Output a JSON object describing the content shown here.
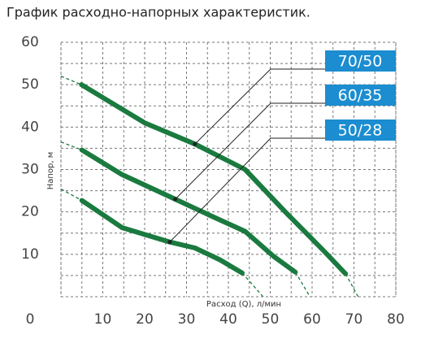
{
  "chart_data": {
    "type": "line",
    "title": "График расходно-напорных характеристик.",
    "x_label": "Расход (Q), л/мин",
    "y_label": "Напор, м",
    "xlim": [
      0,
      80
    ],
    "ylim": [
      0,
      60
    ],
    "xticks": [
      0,
      10,
      20,
      30,
      40,
      50,
      60,
      70,
      80
    ],
    "yticks": [
      0,
      10,
      20,
      30,
      40,
      50,
      60
    ],
    "grid": true,
    "dashed_ends": true,
    "series": [
      {
        "name": "70/50",
        "color": "#1a7a3f",
        "label_color": "#1b8dd0",
        "x": [
          0,
          4.9,
          20,
          32,
          44,
          53.6,
          63,
          68,
          71
        ],
        "values": [
          52,
          50,
          41,
          36,
          30,
          20,
          10.6,
          5.4,
          0
        ]
      },
      {
        "name": "60/35",
        "color": "#1a7a3f",
        "label_color": "#1b8dd0",
        "x": [
          0,
          5,
          14.6,
          27.3,
          36,
          44,
          50.7,
          56,
          59.5
        ],
        "values": [
          36.5,
          34.6,
          28.8,
          23,
          19,
          15.4,
          9.6,
          5.8,
          0
        ]
      },
      {
        "name": "50/28",
        "color": "#1a7a3f",
        "label_color": "#1b8dd0",
        "x": [
          0,
          5,
          14.6,
          26,
          32,
          38,
          43.3,
          48.3
        ],
        "values": [
          25.4,
          22.7,
          16.3,
          12.9,
          11.5,
          8.7,
          5.6,
          0
        ]
      }
    ]
  }
}
